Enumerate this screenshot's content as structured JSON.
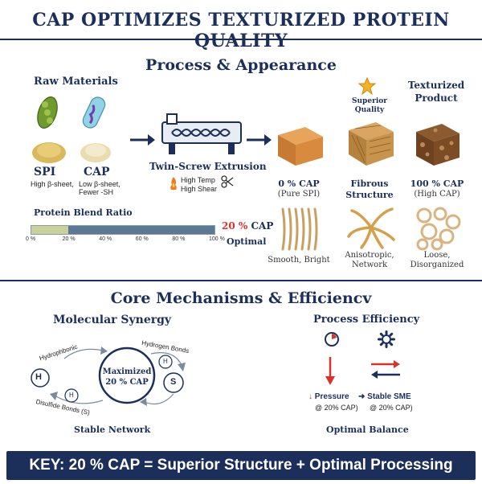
{
  "title": "CAP OPTIMIZES TEXTURIZED PROTEIN QUALITY",
  "process": {
    "heading": "Process & Appearance",
    "raw_materials": "Raw Materials",
    "spi": {
      "name": "SPI",
      "desc": "High β-sheet,"
    },
    "cap": {
      "name": "CAP",
      "desc1": "Low β-sheet,",
      "desc2": "Fewer -SH"
    },
    "extrusion": {
      "label": "Twin-Screw Extrusion",
      "temp": "High Temp",
      "shear": "High Shear"
    },
    "blend": {
      "label": "Protein Blend Ratio",
      "ticks": [
        "0 %",
        "20 %",
        "40 %",
        "60 %",
        "80 %",
        "100 %"
      ],
      "fraction": 0.2,
      "value_label": "20 % CAP",
      "optimal": "Optimal"
    },
    "superior_quality": "Superior Quality",
    "textured_product": "Texturized Product",
    "products": [
      {
        "title": "0 % CAP",
        "sub": "(Pure SPI)",
        "caption": "Smooth, Bright"
      },
      {
        "title": "Fibrous",
        "sub": "Structure",
        "caption1": "Anisotropic,",
        "caption2": "Network"
      },
      {
        "title": "100 % CAP",
        "sub": "(High CAP)",
        "caption1": "Loose,",
        "caption2": "Disorganized"
      }
    ]
  },
  "mechanisms": {
    "heading": "Core Mechanisms & Efficiencv",
    "synergy": {
      "label": "Molecular Synergy",
      "center1": "Maximized",
      "center2": "20 % CAP",
      "hydrophobic": "Hydrophbonic",
      "hydrogen": "Hydrogen Bonds",
      "disulfide": "Disulfide Bonds (S)",
      "h": "H",
      "s": "S",
      "footer": "Stable Network"
    },
    "efficiency": {
      "label": "Process Efficiency",
      "pressure": "Pressure",
      "pressure_sub": "@ 20% CAP)",
      "sme": "Stable SME",
      "sme_sub": "@ 20% CAP)",
      "footer": "Optimal Balance"
    }
  },
  "key": "KEY: 20 % CAP = Superior Structure + Optimal Processing",
  "colors": {
    "navy": "#1b2f5a",
    "red": "#d8322a",
    "bar_low": "#c9d09a",
    "bar_high": "#5d7893"
  }
}
